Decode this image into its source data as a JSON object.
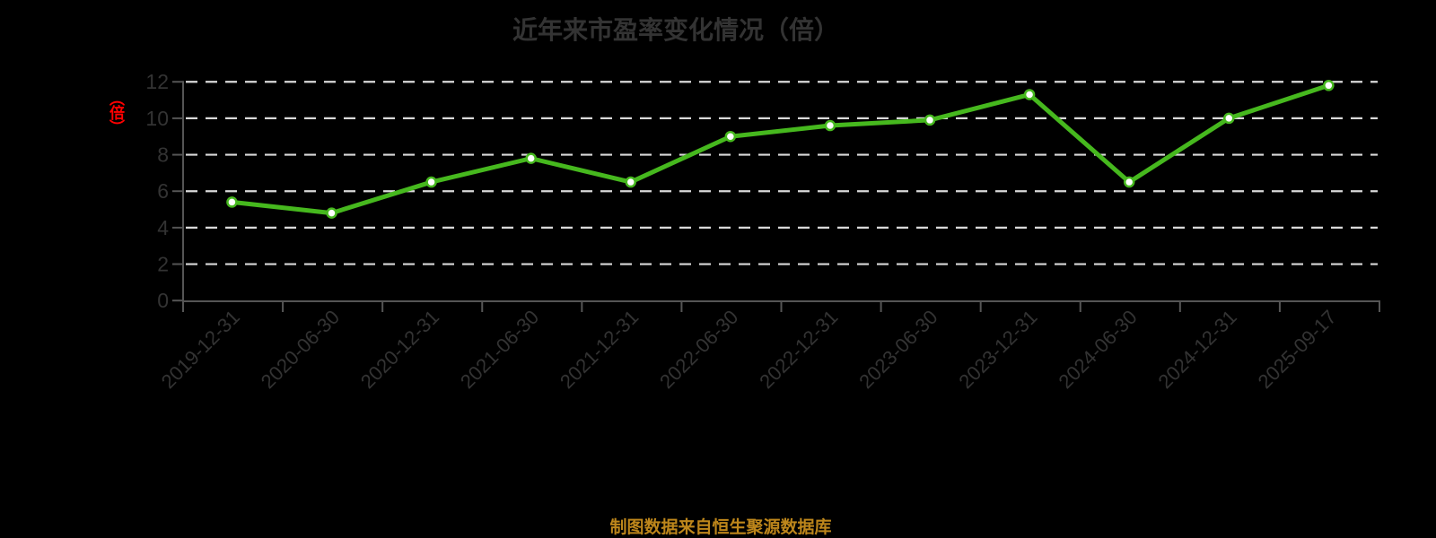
{
  "title": "近年来市盈率变化情况（倍）",
  "y_axis": {
    "unit_label": "（倍）",
    "tick_labels": [
      "0",
      "2",
      "4",
      "6",
      "8",
      "10",
      "12"
    ]
  },
  "footer": {
    "source_note": "制图数据来自恒生聚源数据库"
  },
  "colors": {
    "background": "#000000",
    "line": "#46b81e",
    "marker_fill": "#ffffff",
    "grid": "#d9d9d9",
    "axis": "#555555",
    "tick_text": "#333333",
    "title_text": "#333333",
    "unit_label_text": "#ff0000",
    "source_note_text": "#bd861b"
  },
  "chart_data": {
    "type": "line",
    "title": "近年来市盈率变化情况（倍）",
    "ylabel": "（倍）",
    "xlabel": "",
    "categories": [
      "2019-12-31",
      "2020-06-30",
      "2020-12-31",
      "2021-06-30",
      "2021-12-31",
      "2022-06-30",
      "2022-12-31",
      "2023-06-30",
      "2023-12-31",
      "2024-06-30",
      "2024-12-31",
      "2025-09-17"
    ],
    "values": [
      5.4,
      4.8,
      6.5,
      7.8,
      6.5,
      9.0,
      9.6,
      9.9,
      11.3,
      6.5,
      10.0,
      11.8
    ],
    "ylim": [
      0,
      12
    ],
    "yticks": [
      0,
      2,
      4,
      6,
      8,
      10,
      12
    ],
    "grid": "horizontal-dashed",
    "legend": "none",
    "x_tick_rotation": 45,
    "marker": "circle-white-fill"
  }
}
